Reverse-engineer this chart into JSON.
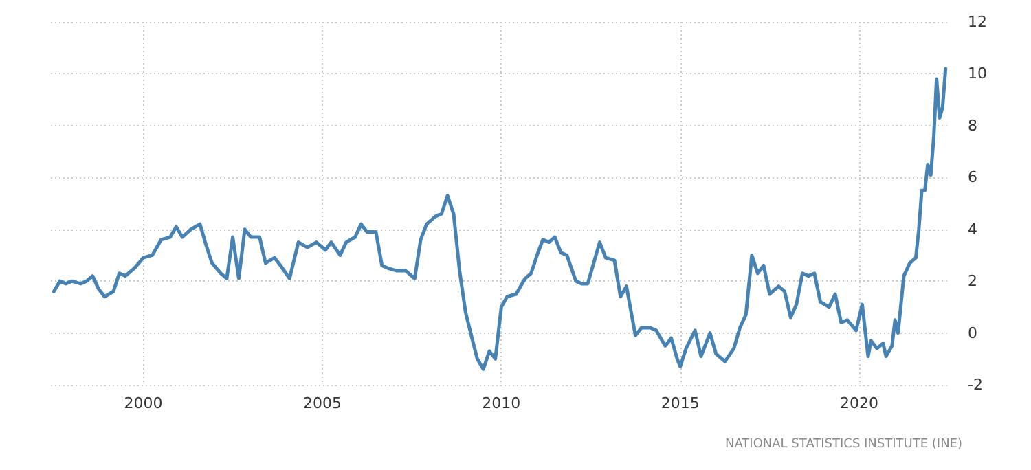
{
  "chart_data": {
    "type": "line",
    "annotations": [
      "NATIONAL STATISTICS INSTITUTE (INE)"
    ],
    "x": [
      "1997-07",
      "1997-09",
      "1997-11",
      "1998-01",
      "1998-04",
      "1998-06",
      "1998-08",
      "1998-10",
      "1998-12",
      "1999-03",
      "1999-05",
      "1999-07",
      "1999-10",
      "2000-01",
      "2000-04",
      "2000-07",
      "2000-10",
      "2000-12",
      "2001-02",
      "2001-05",
      "2001-08",
      "2001-10",
      "2001-12",
      "2002-03",
      "2002-05",
      "2002-07",
      "2002-09",
      "2002-11",
      "2003-01",
      "2003-04",
      "2003-06",
      "2003-09",
      "2003-11",
      "2004-02",
      "2004-05",
      "2004-08",
      "2004-11",
      "2005-02",
      "2005-04",
      "2005-07",
      "2005-09",
      "2005-12",
      "2006-02",
      "2006-04",
      "2006-07",
      "2006-09",
      "2006-11",
      "2007-02",
      "2007-05",
      "2007-08",
      "2007-10",
      "2007-12",
      "2008-03",
      "2008-05",
      "2008-07",
      "2008-09",
      "2008-11",
      "2009-01",
      "2009-03",
      "2009-05",
      "2009-07",
      "2009-09",
      "2009-11",
      "2010-01",
      "2010-03",
      "2010-06",
      "2010-09",
      "2010-11",
      "2011-01",
      "2011-03",
      "2011-05",
      "2011-07",
      "2011-09",
      "2011-11",
      "2012-02",
      "2012-04",
      "2012-06",
      "2012-08",
      "2012-10",
      "2012-12",
      "2013-03",
      "2013-05",
      "2013-07",
      "2013-10",
      "2013-12",
      "2014-03",
      "2014-05",
      "2014-08",
      "2014-10",
      "2014-12",
      "2015-01",
      "2015-03",
      "2015-06",
      "2015-08",
      "2015-11",
      "2016-01",
      "2016-04",
      "2016-07",
      "2016-09",
      "2016-11",
      "2017-01",
      "2017-03",
      "2017-05",
      "2017-07",
      "2017-10",
      "2017-12",
      "2018-02",
      "2018-04",
      "2018-06",
      "2018-08",
      "2018-10",
      "2018-12",
      "2019-03",
      "2019-05",
      "2019-07",
      "2019-09",
      "2019-12",
      "2020-02",
      "2020-04",
      "2020-05",
      "2020-07",
      "2020-09",
      "2020-10",
      "2020-12",
      "2021-01",
      "2021-02",
      "2021-04",
      "2021-06",
      "2021-08",
      "2021-09",
      "2021-10",
      "2021-11",
      "2021-12",
      "2022-01",
      "2022-02",
      "2022-03",
      "2022-04",
      "2022-05",
      "2022-06"
    ],
    "series": [
      {
        "color": "#4682b4",
        "values": [
          1.6,
          2.0,
          1.9,
          2.0,
          1.9,
          2.0,
          2.2,
          1.7,
          1.4,
          1.6,
          2.3,
          2.2,
          2.5,
          2.9,
          3.0,
          3.6,
          3.7,
          4.1,
          3.7,
          4.0,
          4.2,
          3.4,
          2.7,
          2.3,
          2.1,
          3.7,
          2.1,
          4.0,
          3.7,
          3.7,
          2.7,
          2.9,
          2.6,
          2.1,
          3.5,
          3.3,
          3.5,
          3.2,
          3.5,
          3.0,
          3.5,
          3.7,
          4.2,
          3.9,
          3.9,
          2.6,
          2.5,
          2.4,
          2.4,
          2.1,
          3.6,
          4.2,
          4.5,
          4.6,
          5.3,
          4.6,
          2.4,
          0.8,
          -0.1,
          -1.0,
          -1.4,
          -0.7,
          -1.0,
          1.0,
          1.4,
          1.5,
          2.1,
          2.3,
          3.0,
          3.6,
          3.5,
          3.7,
          3.1,
          3.0,
          2.0,
          1.9,
          1.9,
          2.7,
          3.5,
          2.9,
          2.8,
          1.4,
          1.8,
          -0.1,
          0.2,
          0.2,
          0.1,
          -0.5,
          -0.2,
          -1.0,
          -1.3,
          -0.6,
          0.1,
          -0.9,
          0.0,
          -0.8,
          -1.1,
          -0.6,
          0.2,
          0.7,
          3.0,
          2.3,
          2.6,
          1.5,
          1.8,
          1.6,
          0.6,
          1.1,
          2.3,
          2.2,
          2.3,
          1.2,
          1.0,
          1.5,
          0.4,
          0.5,
          0.1,
          1.1,
          -0.9,
          -0.3,
          -0.6,
          -0.4,
          -0.9,
          -0.5,
          0.5,
          0.0,
          2.2,
          2.7,
          2.9,
          4.0,
          5.5,
          5.5,
          6.5,
          6.1,
          7.6,
          9.8,
          8.3,
          8.7,
          10.2
        ]
      }
    ],
    "xlim": [
      "1997-06",
      "2022-07"
    ],
    "xticks": [
      "2000",
      "2005",
      "2010",
      "2015",
      "2020"
    ],
    "ylim": [
      -2,
      12
    ],
    "yticks": [
      -2,
      0,
      2,
      4,
      6,
      8,
      10,
      12
    ],
    "grid": true,
    "line_style": "solid",
    "marker": "none"
  }
}
